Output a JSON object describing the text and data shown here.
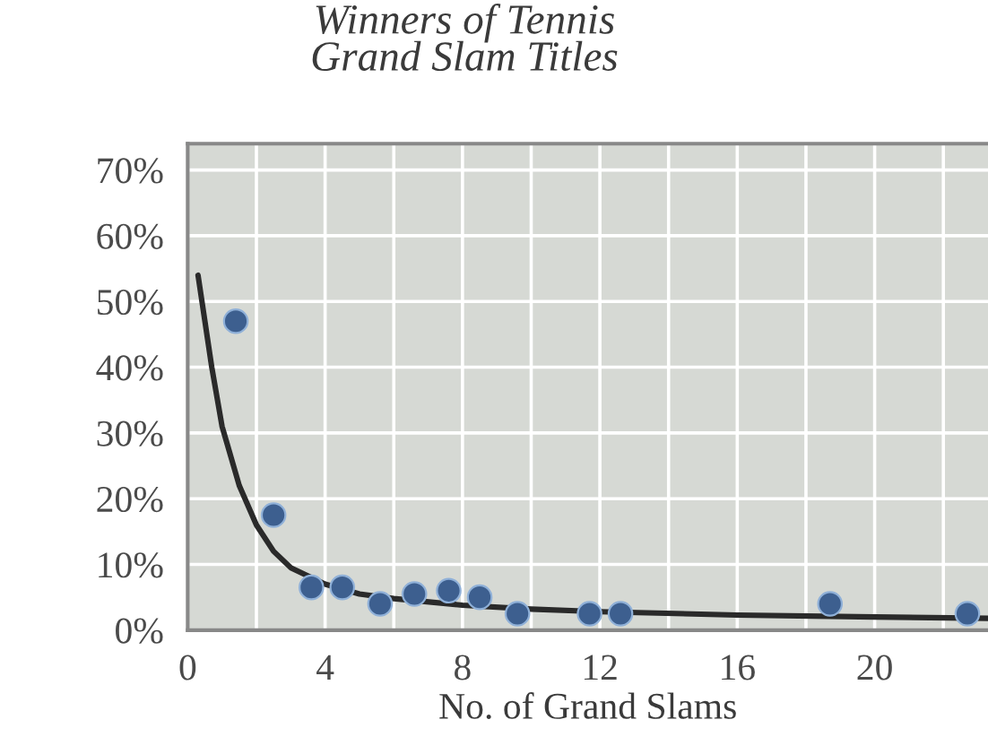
{
  "chart_data": {
    "type": "scatter",
    "title": "Winners of Tennis\nGrand Slam Titles",
    "xlabel": "No. of Grand Slams",
    "series": [
      {
        "marker": "circle",
        "color": "#3d5f8f",
        "x": [
          1.4,
          2.5,
          3.6,
          4.5,
          5.6,
          6.6,
          7.6,
          8.5,
          9.6,
          11.7,
          12.6,
          18.7,
          22.7
        ],
        "values": [
          47,
          17.5,
          6.5,
          6.5,
          4,
          5.5,
          6,
          5,
          2.5,
          2.5,
          2.5,
          4,
          2.5
        ]
      },
      {
        "type": "line",
        "marker": "none",
        "color": "#2a2a2a",
        "x": [
          0.3,
          0.7,
          1,
          1.5,
          2,
          2.5,
          3,
          4,
          5,
          6,
          8,
          10,
          12,
          16,
          20,
          23.3
        ],
        "values": [
          54,
          40,
          31,
          22,
          16,
          12,
          9.5,
          7,
          5.5,
          4.8,
          3.8,
          3.2,
          2.8,
          2.3,
          2,
          1.8
        ]
      }
    ],
    "xlim": [
      0,
      23.3
    ],
    "ylim": [
      0,
      74
    ],
    "xticks": [
      0,
      {
        "value": 2,
        "label": null
      },
      4,
      {
        "value": 6,
        "label": null
      },
      8,
      {
        "value": 10,
        "label": null
      },
      12,
      {
        "value": 14,
        "label": null
      },
      16,
      {
        "value": 18,
        "label": null
      },
      20,
      {
        "value": 22,
        "label": null
      }
    ],
    "yticks": [
      {
        "value": 0,
        "label": "0%"
      },
      {
        "value": 10,
        "label": "10%"
      },
      {
        "value": 20,
        "label": "20%"
      },
      {
        "value": 30,
        "label": "30%"
      },
      {
        "value": 40,
        "label": "40%"
      },
      {
        "value": 50,
        "label": "50%"
      },
      {
        "value": 60,
        "label": "60%"
      },
      {
        "value": 70,
        "label": "70%"
      }
    ],
    "grid": true
  }
}
